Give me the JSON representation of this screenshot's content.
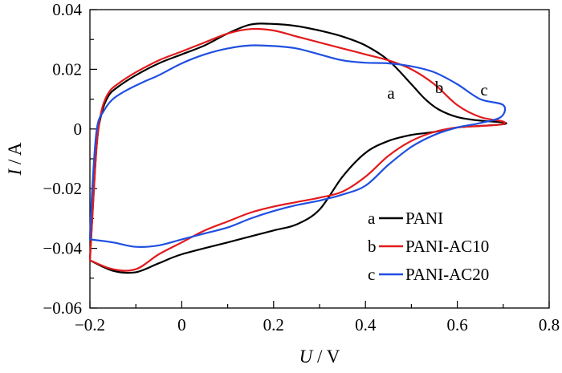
{
  "chart_data": {
    "type": "line",
    "title": "",
    "xlabel_var": "U",
    "xlabel_unit": " / V",
    "ylabel_var": "I",
    "ylabel_unit": " / A",
    "xlim": [
      -0.2,
      0.8
    ],
    "ylim": [
      -0.06,
      0.04
    ],
    "xticks": [
      -0.2,
      0,
      0.2,
      0.4,
      0.6,
      0.8
    ],
    "yticks": [
      0.04,
      0.02,
      0,
      -0.02,
      -0.04,
      -0.06
    ],
    "xtick_labels": [
      "−0.2",
      "0",
      "0.2",
      "0.4",
      "0.6",
      "0.8"
    ],
    "ytick_labels": [
      "0.04",
      "0.02",
      "0",
      "−0.02",
      "−0.04",
      "−0.06"
    ],
    "grid": false,
    "legend_position": "bottom-right",
    "series": [
      {
        "key": "a",
        "name": "PANI",
        "color": "#000000",
        "points": [
          [
            -0.2,
            -0.044
          ],
          [
            -0.195,
            -0.03
          ],
          [
            -0.185,
            -0.005
          ],
          [
            -0.175,
            0.005
          ],
          [
            -0.16,
            0.011
          ],
          [
            -0.14,
            0.014
          ],
          [
            -0.1,
            0.018
          ],
          [
            -0.05,
            0.022
          ],
          [
            0,
            0.025
          ],
          [
            0.05,
            0.028
          ],
          [
            0.1,
            0.032
          ],
          [
            0.15,
            0.035
          ],
          [
            0.2,
            0.0352
          ],
          [
            0.25,
            0.0345
          ],
          [
            0.3,
            0.033
          ],
          [
            0.35,
            0.031
          ],
          [
            0.4,
            0.028
          ],
          [
            0.45,
            0.023
          ],
          [
            0.5,
            0.015
          ],
          [
            0.53,
            0.01
          ],
          [
            0.56,
            0.0065
          ],
          [
            0.6,
            0.004
          ],
          [
            0.65,
            0.0028
          ],
          [
            0.7,
            0.0022
          ],
          [
            0.695,
            0.0015
          ],
          [
            0.6,
            0.0005
          ],
          [
            0.55,
            -0.001
          ],
          [
            0.5,
            -0.002
          ],
          [
            0.45,
            -0.004
          ],
          [
            0.4,
            -0.008
          ],
          [
            0.35,
            -0.016
          ],
          [
            0.3,
            -0.027
          ],
          [
            0.25,
            -0.032
          ],
          [
            0.2,
            -0.034
          ],
          [
            0.1,
            -0.038
          ],
          [
            0,
            -0.042
          ],
          [
            -0.05,
            -0.045
          ],
          [
            -0.1,
            -0.048
          ],
          [
            -0.15,
            -0.0475
          ],
          [
            -0.2,
            -0.044
          ]
        ]
      },
      {
        "key": "b",
        "name": "PANI-AC10",
        "color": "#e31a1c",
        "points": [
          [
            -0.2,
            -0.044
          ],
          [
            -0.195,
            -0.03
          ],
          [
            -0.185,
            -0.005
          ],
          [
            -0.175,
            0.006
          ],
          [
            -0.16,
            0.012
          ],
          [
            -0.14,
            0.015
          ],
          [
            -0.1,
            0.019
          ],
          [
            -0.05,
            0.023
          ],
          [
            0,
            0.026
          ],
          [
            0.05,
            0.029
          ],
          [
            0.1,
            0.032
          ],
          [
            0.15,
            0.0335
          ],
          [
            0.2,
            0.033
          ],
          [
            0.25,
            0.031
          ],
          [
            0.3,
            0.029
          ],
          [
            0.35,
            0.027
          ],
          [
            0.4,
            0.025
          ],
          [
            0.45,
            0.023
          ],
          [
            0.5,
            0.02
          ],
          [
            0.55,
            0.015
          ],
          [
            0.6,
            0.008
          ],
          [
            0.65,
            0.004
          ],
          [
            0.7,
            0.0025
          ],
          [
            0.695,
            0.0015
          ],
          [
            0.65,
            0.001
          ],
          [
            0.6,
            0.0005
          ],
          [
            0.55,
            -0.001
          ],
          [
            0.5,
            -0.004
          ],
          [
            0.45,
            -0.009
          ],
          [
            0.4,
            -0.016
          ],
          [
            0.35,
            -0.021
          ],
          [
            0.3,
            -0.023
          ],
          [
            0.25,
            -0.0245
          ],
          [
            0.2,
            -0.026
          ],
          [
            0.15,
            -0.028
          ],
          [
            0.1,
            -0.031
          ],
          [
            0.05,
            -0.034
          ],
          [
            0,
            -0.038
          ],
          [
            -0.05,
            -0.042
          ],
          [
            -0.1,
            -0.047
          ],
          [
            -0.15,
            -0.047
          ],
          [
            -0.2,
            -0.044
          ]
        ]
      },
      {
        "key": "c",
        "name": "PANI-AC20",
        "color": "#1f4fe0",
        "points": [
          [
            -0.2,
            -0.037
          ],
          [
            -0.195,
            -0.02
          ],
          [
            -0.185,
            0.0
          ],
          [
            -0.17,
            0.006
          ],
          [
            -0.15,
            0.01
          ],
          [
            -0.12,
            0.013
          ],
          [
            -0.08,
            0.016
          ],
          [
            -0.05,
            0.018
          ],
          [
            0,
            0.022
          ],
          [
            0.05,
            0.025
          ],
          [
            0.1,
            0.027
          ],
          [
            0.15,
            0.028
          ],
          [
            0.2,
            0.0278
          ],
          [
            0.25,
            0.027
          ],
          [
            0.3,
            0.025
          ],
          [
            0.35,
            0.023
          ],
          [
            0.4,
            0.0222
          ],
          [
            0.45,
            0.022
          ],
          [
            0.5,
            0.021
          ],
          [
            0.55,
            0.019
          ],
          [
            0.6,
            0.015
          ],
          [
            0.65,
            0.01
          ],
          [
            0.7,
            0.008
          ],
          [
            0.695,
            0.004
          ],
          [
            0.65,
            0.002
          ],
          [
            0.6,
            0.0005
          ],
          [
            0.55,
            -0.002
          ],
          [
            0.5,
            -0.006
          ],
          [
            0.45,
            -0.012
          ],
          [
            0.4,
            -0.019
          ],
          [
            0.35,
            -0.022
          ],
          [
            0.3,
            -0.024
          ],
          [
            0.25,
            -0.0255
          ],
          [
            0.2,
            -0.0275
          ],
          [
            0.15,
            -0.03
          ],
          [
            0.1,
            -0.033
          ],
          [
            0.05,
            -0.035
          ],
          [
            0,
            -0.037
          ],
          [
            -0.05,
            -0.039
          ],
          [
            -0.1,
            -0.0395
          ],
          [
            -0.15,
            -0.038
          ],
          [
            -0.2,
            -0.037
          ]
        ]
      }
    ],
    "curve_labels": [
      {
        "key": "a",
        "text": "a"
      },
      {
        "key": "b",
        "text": "b"
      },
      {
        "key": "c",
        "text": "c"
      }
    ]
  }
}
